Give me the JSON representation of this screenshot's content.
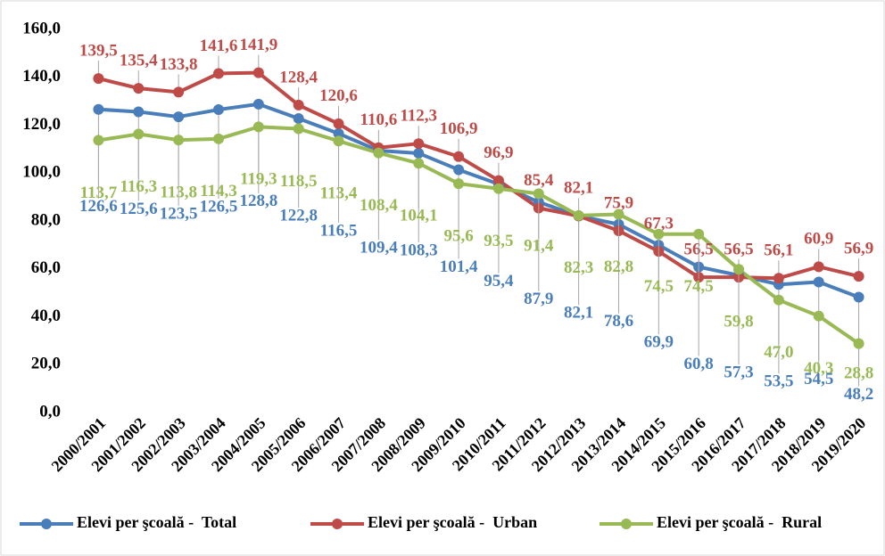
{
  "chart_data": {
    "type": "line",
    "categories": [
      "2000/2001",
      "2001/2002",
      "2002/2003",
      "2003/2004",
      "2004/2005",
      "2005/2006",
      "2006/2007",
      "2007/2008",
      "2008/2009",
      "2009/2010",
      "2010/2011",
      "2011/2012",
      "2012/2013",
      "2013/2014",
      "2014/2015",
      "2015/2016",
      "2016/2017",
      "2017/2018",
      "2018/2019",
      "2019/2020"
    ],
    "series": [
      {
        "name": "Elevi per şcoală -  Total",
        "color": "#4a7ebb",
        "values": [
          126.6,
          125.6,
          123.5,
          126.5,
          128.8,
          122.8,
          116.5,
          109.4,
          108.3,
          101.4,
          95.4,
          87.9,
          82.1,
          78.6,
          69.9,
          60.8,
          57.3,
          53.5,
          54.5,
          48.2
        ],
        "value_labels": [
          "126,6",
          "125,6",
          "123,5",
          "126,5",
          "128,8",
          "122,8",
          "116,5",
          "109,4",
          "108,3",
          "101,4",
          "95,4",
          "87,9",
          "82,1",
          "78,6",
          "69,9",
          "60,8",
          "57,3",
          "53,5",
          "54,5",
          "48,2"
        ]
      },
      {
        "name": "Elevi per şcoală -  Urban",
        "color": "#be4b48",
        "values": [
          139.5,
          135.4,
          133.8,
          141.6,
          141.9,
          128.4,
          120.6,
          110.6,
          112.3,
          106.9,
          96.9,
          85.4,
          82.1,
          75.9,
          67.3,
          56.5,
          56.5,
          56.1,
          60.9,
          56.9
        ],
        "value_labels": [
          "139,5",
          "135,4",
          "133,8",
          "141,6",
          "141,9",
          "128,4",
          "120,6",
          "110,6",
          "112,3",
          "106,9",
          "96,9",
          "85,4",
          "82,1",
          "75,9",
          "67,3",
          "56,5",
          "56,5",
          "56,1",
          "60,9",
          "56,9"
        ]
      },
      {
        "name": "Elevi per şcoală -  Rural",
        "color": "#98b954",
        "values": [
          113.7,
          116.3,
          113.8,
          114.3,
          119.3,
          118.5,
          113.4,
          108.4,
          104.1,
          95.6,
          93.5,
          91.4,
          82.3,
          82.8,
          74.5,
          74.5,
          59.8,
          47.0,
          40.3,
          28.8
        ],
        "value_labels": [
          "113,7",
          "116,3",
          "113,8",
          "114,3",
          "119,3",
          "118,5",
          "113,4",
          "108,4",
          "104,1",
          "95,6",
          "93,5",
          "91,4",
          "82,3",
          "82,8",
          "74,5",
          "74,5",
          "59,8",
          "47,0",
          "40,3",
          "28,8"
        ]
      }
    ],
    "ylim": [
      0,
      160
    ],
    "yticks": [
      {
        "value": 0,
        "label": "0,0"
      },
      {
        "value": 20,
        "label": "20,0"
      },
      {
        "value": 40,
        "label": "40,0"
      },
      {
        "value": 60,
        "label": "60,0"
      },
      {
        "value": 80,
        "label": "80,0"
      },
      {
        "value": 100,
        "label": "100,0"
      },
      {
        "value": 120,
        "label": "120,0"
      },
      {
        "value": 140,
        "label": "140,0"
      },
      {
        "value": 160,
        "label": "160,0"
      }
    ],
    "grid": false,
    "legend": "bottom"
  }
}
